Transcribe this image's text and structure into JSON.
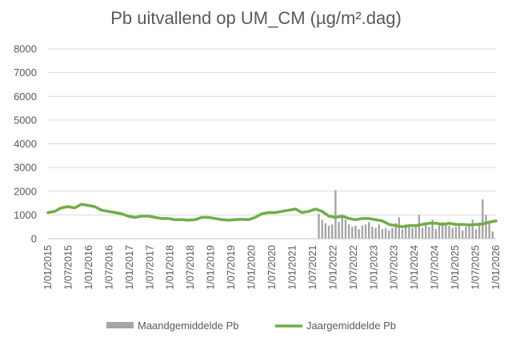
{
  "chart_data": {
    "type": "bar+line",
    "title": "Pb uitvallend op UM_CM (µg/m².dag)",
    "xlabel": "",
    "ylabel": "",
    "ylim": [
      0,
      8000
    ],
    "yticks": [
      0,
      1000,
      2000,
      3000,
      4000,
      5000,
      6000,
      7000,
      8000
    ],
    "grid": true,
    "legend_position": "bottom",
    "x_start": "2015-01",
    "x_end": "2026-03",
    "xtick_labels": [
      "1/01/2015",
      "1/07/2015",
      "1/01/2016",
      "1/07/2016",
      "1/01/2017",
      "1/07/2017",
      "1/01/2018",
      "1/07/2018",
      "1/01/2019",
      "1/07/2019",
      "1/01/2020",
      "1/07/2020",
      "1/01/2021",
      "1/07/2021",
      "1/01/2022",
      "1/07/2022",
      "1/01/2023",
      "1/07/2023",
      "1/01/2024",
      "1/07/2024",
      "1/01/2025",
      "1/07/2025",
      "1/01/2026"
    ],
    "series": [
      {
        "name": "Maandgemiddelde Pb",
        "kind": "bar",
        "color": "#a5a5a5",
        "x": [
          "2021-10",
          "2021-11",
          "2021-12",
          "2022-01",
          "2022-02",
          "2022-03",
          "2022-04",
          "2022-05",
          "2022-06",
          "2022-07",
          "2022-08",
          "2022-09",
          "2022-10",
          "2022-11",
          "2022-12",
          "2023-01",
          "2023-02",
          "2023-03",
          "2023-04",
          "2023-05",
          "2023-06",
          "2023-07",
          "2023-08",
          "2023-09",
          "2023-10",
          "2023-11",
          "2023-12",
          "2024-01",
          "2024-02",
          "2024-03",
          "2024-04",
          "2024-05",
          "2024-06",
          "2024-07",
          "2024-08",
          "2024-09",
          "2024-10",
          "2024-11",
          "2024-12",
          "2025-01",
          "2025-02",
          "2025-03",
          "2025-04",
          "2025-05",
          "2025-06",
          "2025-07",
          "2025-08",
          "2025-09",
          "2025-10",
          "2025-11",
          "2025-12",
          "2026-01",
          "2026-02"
        ],
        "values": [
          1050,
          800,
          650,
          550,
          600,
          2050,
          700,
          900,
          800,
          600,
          500,
          550,
          400,
          550,
          600,
          700,
          500,
          450,
          600,
          400,
          450,
          350,
          450,
          650,
          900,
          400,
          600,
          550,
          450,
          500,
          1000,
          450,
          600,
          500,
          800,
          400,
          550,
          700,
          600,
          550,
          450,
          500,
          600,
          350,
          500,
          550,
          800,
          400,
          550,
          1650,
          1000,
          650,
          300
        ]
      },
      {
        "name": "Jaargemiddelde Pb",
        "kind": "line",
        "color": "#70ad47",
        "x": [
          "2015-01",
          "2015-03",
          "2015-05",
          "2015-07",
          "2015-09",
          "2015-11",
          "2016-01",
          "2016-03",
          "2016-05",
          "2016-07",
          "2016-09",
          "2016-11",
          "2017-01",
          "2017-03",
          "2017-05",
          "2017-07",
          "2017-09",
          "2017-11",
          "2018-01",
          "2018-03",
          "2018-05",
          "2018-07",
          "2018-09",
          "2018-11",
          "2019-01",
          "2019-03",
          "2019-05",
          "2019-07",
          "2019-09",
          "2019-11",
          "2020-01",
          "2020-03",
          "2020-05",
          "2020-07",
          "2020-09",
          "2020-11",
          "2021-01",
          "2021-03",
          "2021-05",
          "2021-07",
          "2021-09",
          "2021-11",
          "2022-01",
          "2022-03",
          "2022-05",
          "2022-07",
          "2022-09",
          "2022-11",
          "2023-01",
          "2023-03",
          "2023-05",
          "2023-07",
          "2023-09",
          "2023-11",
          "2024-01",
          "2024-03",
          "2024-05",
          "2024-07",
          "2024-09",
          "2024-11",
          "2025-01",
          "2025-03",
          "2025-05",
          "2025-07",
          "2025-09",
          "2025-11",
          "2026-01",
          "2026-03"
        ],
        "values": [
          1100,
          1150,
          1300,
          1350,
          1300,
          1450,
          1400,
          1350,
          1200,
          1150,
          1100,
          1050,
          950,
          900,
          950,
          950,
          900,
          850,
          850,
          800,
          800,
          780,
          800,
          900,
          900,
          850,
          800,
          780,
          800,
          820,
          800,
          900,
          1050,
          1100,
          1100,
          1150,
          1200,
          1250,
          1100,
          1150,
          1250,
          1150,
          950,
          900,
          950,
          850,
          800,
          850,
          850,
          800,
          750,
          600,
          550,
          500,
          550,
          550,
          600,
          650,
          650,
          600,
          650,
          600,
          600,
          580,
          600,
          620,
          700,
          750
        ]
      }
    ]
  }
}
